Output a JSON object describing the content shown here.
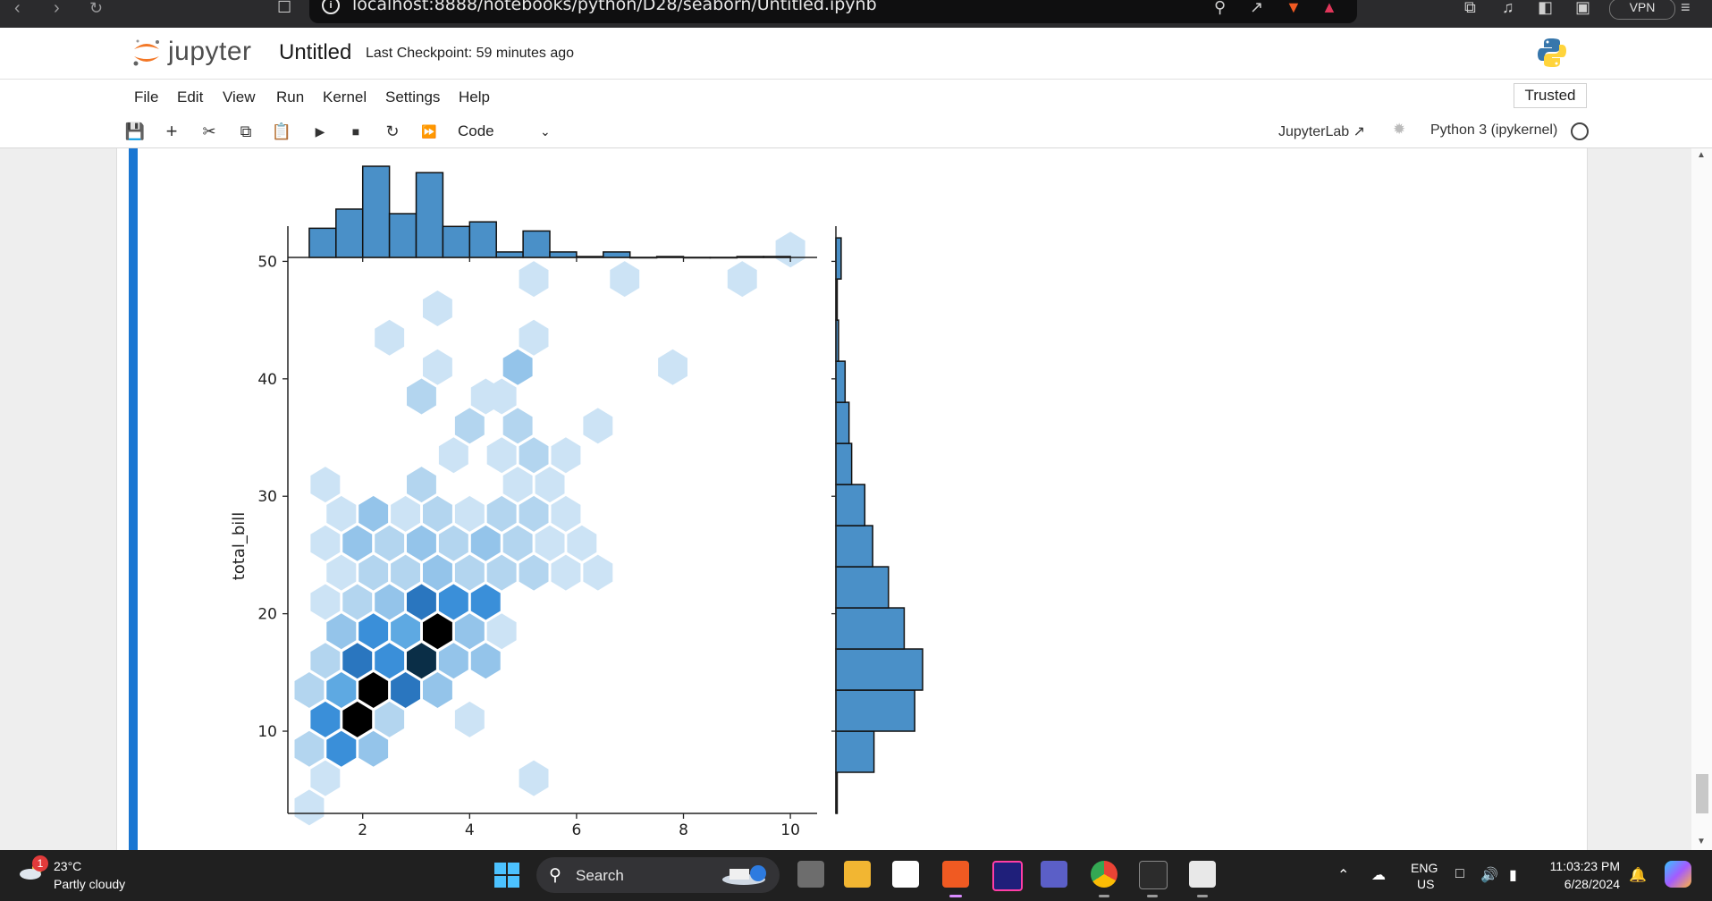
{
  "browser": {
    "url": "localhost:8888/notebooks/python/D28/seaborn/Untitled.ipynb",
    "vpn_label": "VPN"
  },
  "header": {
    "logo_text": "jupyter",
    "notebook_title": "Untitled",
    "checkpoint": "Last Checkpoint: 59 minutes ago"
  },
  "menu": {
    "items": [
      "File",
      "Edit",
      "View",
      "Run",
      "Kernel",
      "Settings",
      "Help"
    ],
    "trusted": "Trusted"
  },
  "toolbar": {
    "cell_type": "Code",
    "jupyterlab_link": "JupyterLab",
    "kernel": "Python 3 (ipykernel)"
  },
  "chart_data": {
    "type": "hexbin-jointplot",
    "ylabel": "total_bill",
    "xlabel": "",
    "x_ticks": [
      2,
      4,
      6,
      8,
      10
    ],
    "y_ticks": [
      10,
      20,
      30,
      40,
      50
    ],
    "xlim": [
      0.6,
      10.5
    ],
    "ylim": [
      3.0,
      53.0
    ],
    "colormap": [
      "#eaf3fb",
      "#cce3f5",
      "#b3d5ef",
      "#94c4ea",
      "#5ea9e2",
      "#3a8fd9",
      "#2a76bf",
      "#155a8c",
      "#0a2e47",
      "#000000"
    ],
    "hexagons": [
      {
        "x": 1.0,
        "y": 3.5,
        "level": 1
      },
      {
        "x": 1.0,
        "y": 8.5,
        "level": 2
      },
      {
        "x": 1.0,
        "y": 13.5,
        "level": 2
      },
      {
        "x": 1.3,
        "y": 6.0,
        "level": 1
      },
      {
        "x": 1.3,
        "y": 11.0,
        "level": 5
      },
      {
        "x": 1.3,
        "y": 16.0,
        "level": 2
      },
      {
        "x": 1.3,
        "y": 21.0,
        "level": 1
      },
      {
        "x": 1.3,
        "y": 26.0,
        "level": 1
      },
      {
        "x": 1.3,
        "y": 31.0,
        "level": 1
      },
      {
        "x": 1.6,
        "y": 8.5,
        "level": 5
      },
      {
        "x": 1.6,
        "y": 13.5,
        "level": 4
      },
      {
        "x": 1.6,
        "y": 18.5,
        "level": 3
      },
      {
        "x": 1.6,
        "y": 23.5,
        "level": 1
      },
      {
        "x": 1.6,
        "y": 28.5,
        "level": 1
      },
      {
        "x": 1.9,
        "y": 11.0,
        "level": 9
      },
      {
        "x": 1.9,
        "y": 16.0,
        "level": 6
      },
      {
        "x": 1.9,
        "y": 21.0,
        "level": 2
      },
      {
        "x": 1.9,
        "y": 26.0,
        "level": 3
      },
      {
        "x": 2.2,
        "y": 8.5,
        "level": 3
      },
      {
        "x": 2.2,
        "y": 13.5,
        "level": 9
      },
      {
        "x": 2.2,
        "y": 18.5,
        "level": 5
      },
      {
        "x": 2.2,
        "y": 23.5,
        "level": 2
      },
      {
        "x": 2.2,
        "y": 28.5,
        "level": 3
      },
      {
        "x": 2.5,
        "y": 11.0,
        "level": 2
      },
      {
        "x": 2.5,
        "y": 16.0,
        "level": 5
      },
      {
        "x": 2.5,
        "y": 21.0,
        "level": 3
      },
      {
        "x": 2.5,
        "y": 26.0,
        "level": 2
      },
      {
        "x": 2.5,
        "y": 43.5,
        "level": 1
      },
      {
        "x": 2.8,
        "y": 13.5,
        "level": 6
      },
      {
        "x": 2.8,
        "y": 18.5,
        "level": 4
      },
      {
        "x": 2.8,
        "y": 23.5,
        "level": 2
      },
      {
        "x": 2.8,
        "y": 28.5,
        "level": 1
      },
      {
        "x": 3.1,
        "y": 16.0,
        "level": 8
      },
      {
        "x": 3.1,
        "y": 21.0,
        "level": 6
      },
      {
        "x": 3.1,
        "y": 26.0,
        "level": 3
      },
      {
        "x": 3.1,
        "y": 31.0,
        "level": 2
      },
      {
        "x": 3.1,
        "y": 38.5,
        "level": 2
      },
      {
        "x": 3.4,
        "y": 13.5,
        "level": 3
      },
      {
        "x": 3.4,
        "y": 18.5,
        "level": 9
      },
      {
        "x": 3.4,
        "y": 23.5,
        "level": 3
      },
      {
        "x": 3.4,
        "y": 28.5,
        "level": 2
      },
      {
        "x": 3.4,
        "y": 41.0,
        "level": 1
      },
      {
        "x": 3.4,
        "y": 46.0,
        "level": 1
      },
      {
        "x": 3.7,
        "y": 16.0,
        "level": 3
      },
      {
        "x": 3.7,
        "y": 21.0,
        "level": 5
      },
      {
        "x": 3.7,
        "y": 26.0,
        "level": 2
      },
      {
        "x": 3.7,
        "y": 33.5,
        "level": 1
      },
      {
        "x": 4.0,
        "y": 11.0,
        "level": 1
      },
      {
        "x": 4.0,
        "y": 18.5,
        "level": 3
      },
      {
        "x": 4.0,
        "y": 23.5,
        "level": 2
      },
      {
        "x": 4.0,
        "y": 28.5,
        "level": 1
      },
      {
        "x": 4.0,
        "y": 36.0,
        "level": 2
      },
      {
        "x": 4.3,
        "y": 16.0,
        "level": 3
      },
      {
        "x": 4.3,
        "y": 21.0,
        "level": 5
      },
      {
        "x": 4.3,
        "y": 26.0,
        "level": 3
      },
      {
        "x": 4.3,
        "y": 38.5,
        "level": 1
      },
      {
        "x": 4.6,
        "y": 18.5,
        "level": 1
      },
      {
        "x": 4.6,
        "y": 23.5,
        "level": 2
      },
      {
        "x": 4.6,
        "y": 28.5,
        "level": 2
      },
      {
        "x": 4.6,
        "y": 33.5,
        "level": 1
      },
      {
        "x": 4.6,
        "y": 38.5,
        "level": 1
      },
      {
        "x": 4.9,
        "y": 26.0,
        "level": 2
      },
      {
        "x": 4.9,
        "y": 31.0,
        "level": 1
      },
      {
        "x": 4.9,
        "y": 36.0,
        "level": 2
      },
      {
        "x": 4.9,
        "y": 41.0,
        "level": 3
      },
      {
        "x": 5.2,
        "y": 6.0,
        "level": 1
      },
      {
        "x": 5.2,
        "y": 23.5,
        "level": 2
      },
      {
        "x": 5.2,
        "y": 28.5,
        "level": 2
      },
      {
        "x": 5.2,
        "y": 33.5,
        "level": 2
      },
      {
        "x": 5.2,
        "y": 43.5,
        "level": 1
      },
      {
        "x": 5.2,
        "y": 48.5,
        "level": 1
      },
      {
        "x": 5.5,
        "y": 26.0,
        "level": 1
      },
      {
        "x": 5.5,
        "y": 31.0,
        "level": 1
      },
      {
        "x": 5.8,
        "y": 23.5,
        "level": 1
      },
      {
        "x": 5.8,
        "y": 28.5,
        "level": 1
      },
      {
        "x": 5.8,
        "y": 33.5,
        "level": 1
      },
      {
        "x": 6.1,
        "y": 26.0,
        "level": 1
      },
      {
        "x": 6.4,
        "y": 23.5,
        "level": 1
      },
      {
        "x": 6.4,
        "y": 36.0,
        "level": 1
      },
      {
        "x": 6.9,
        "y": 48.5,
        "level": 1
      },
      {
        "x": 7.8,
        "y": 41.0,
        "level": 1
      },
      {
        "x": 9.1,
        "y": 48.5,
        "level": 1
      },
      {
        "x": 10.0,
        "y": 51.0,
        "level": 1
      }
    ],
    "marginal_x": {
      "bin_edges": [
        1.0,
        1.5,
        2.0,
        2.5,
        3.0,
        3.5,
        4.0,
        4.5,
        5.0,
        5.5,
        6.0,
        6.5,
        7.0,
        7.5,
        8.0,
        8.5,
        9.0,
        9.5,
        10.0
      ],
      "counts": [
        32,
        53,
        100,
        48,
        93,
        34,
        39,
        6,
        29,
        6,
        1,
        6,
        0,
        1,
        0,
        0,
        1,
        1
      ]
    },
    "marginal_y": {
      "bin_edges": [
        3.0,
        6.5,
        10.0,
        13.5,
        17.0,
        20.5,
        24.0,
        27.5,
        31.0,
        34.5,
        38.0,
        41.5,
        45.0,
        48.5,
        52.0
      ],
      "counts": [
        1,
        29,
        60,
        66,
        52,
        40,
        28,
        22,
        12,
        10,
        7,
        2,
        1,
        4
      ]
    }
  },
  "taskbar": {
    "temperature": "23°C",
    "condition": "Partly cloudy",
    "notification_count": "1",
    "search": "Search",
    "lang1": "ENG",
    "lang2": "US",
    "time": "11:03:23 PM",
    "date": "6/28/2024"
  }
}
